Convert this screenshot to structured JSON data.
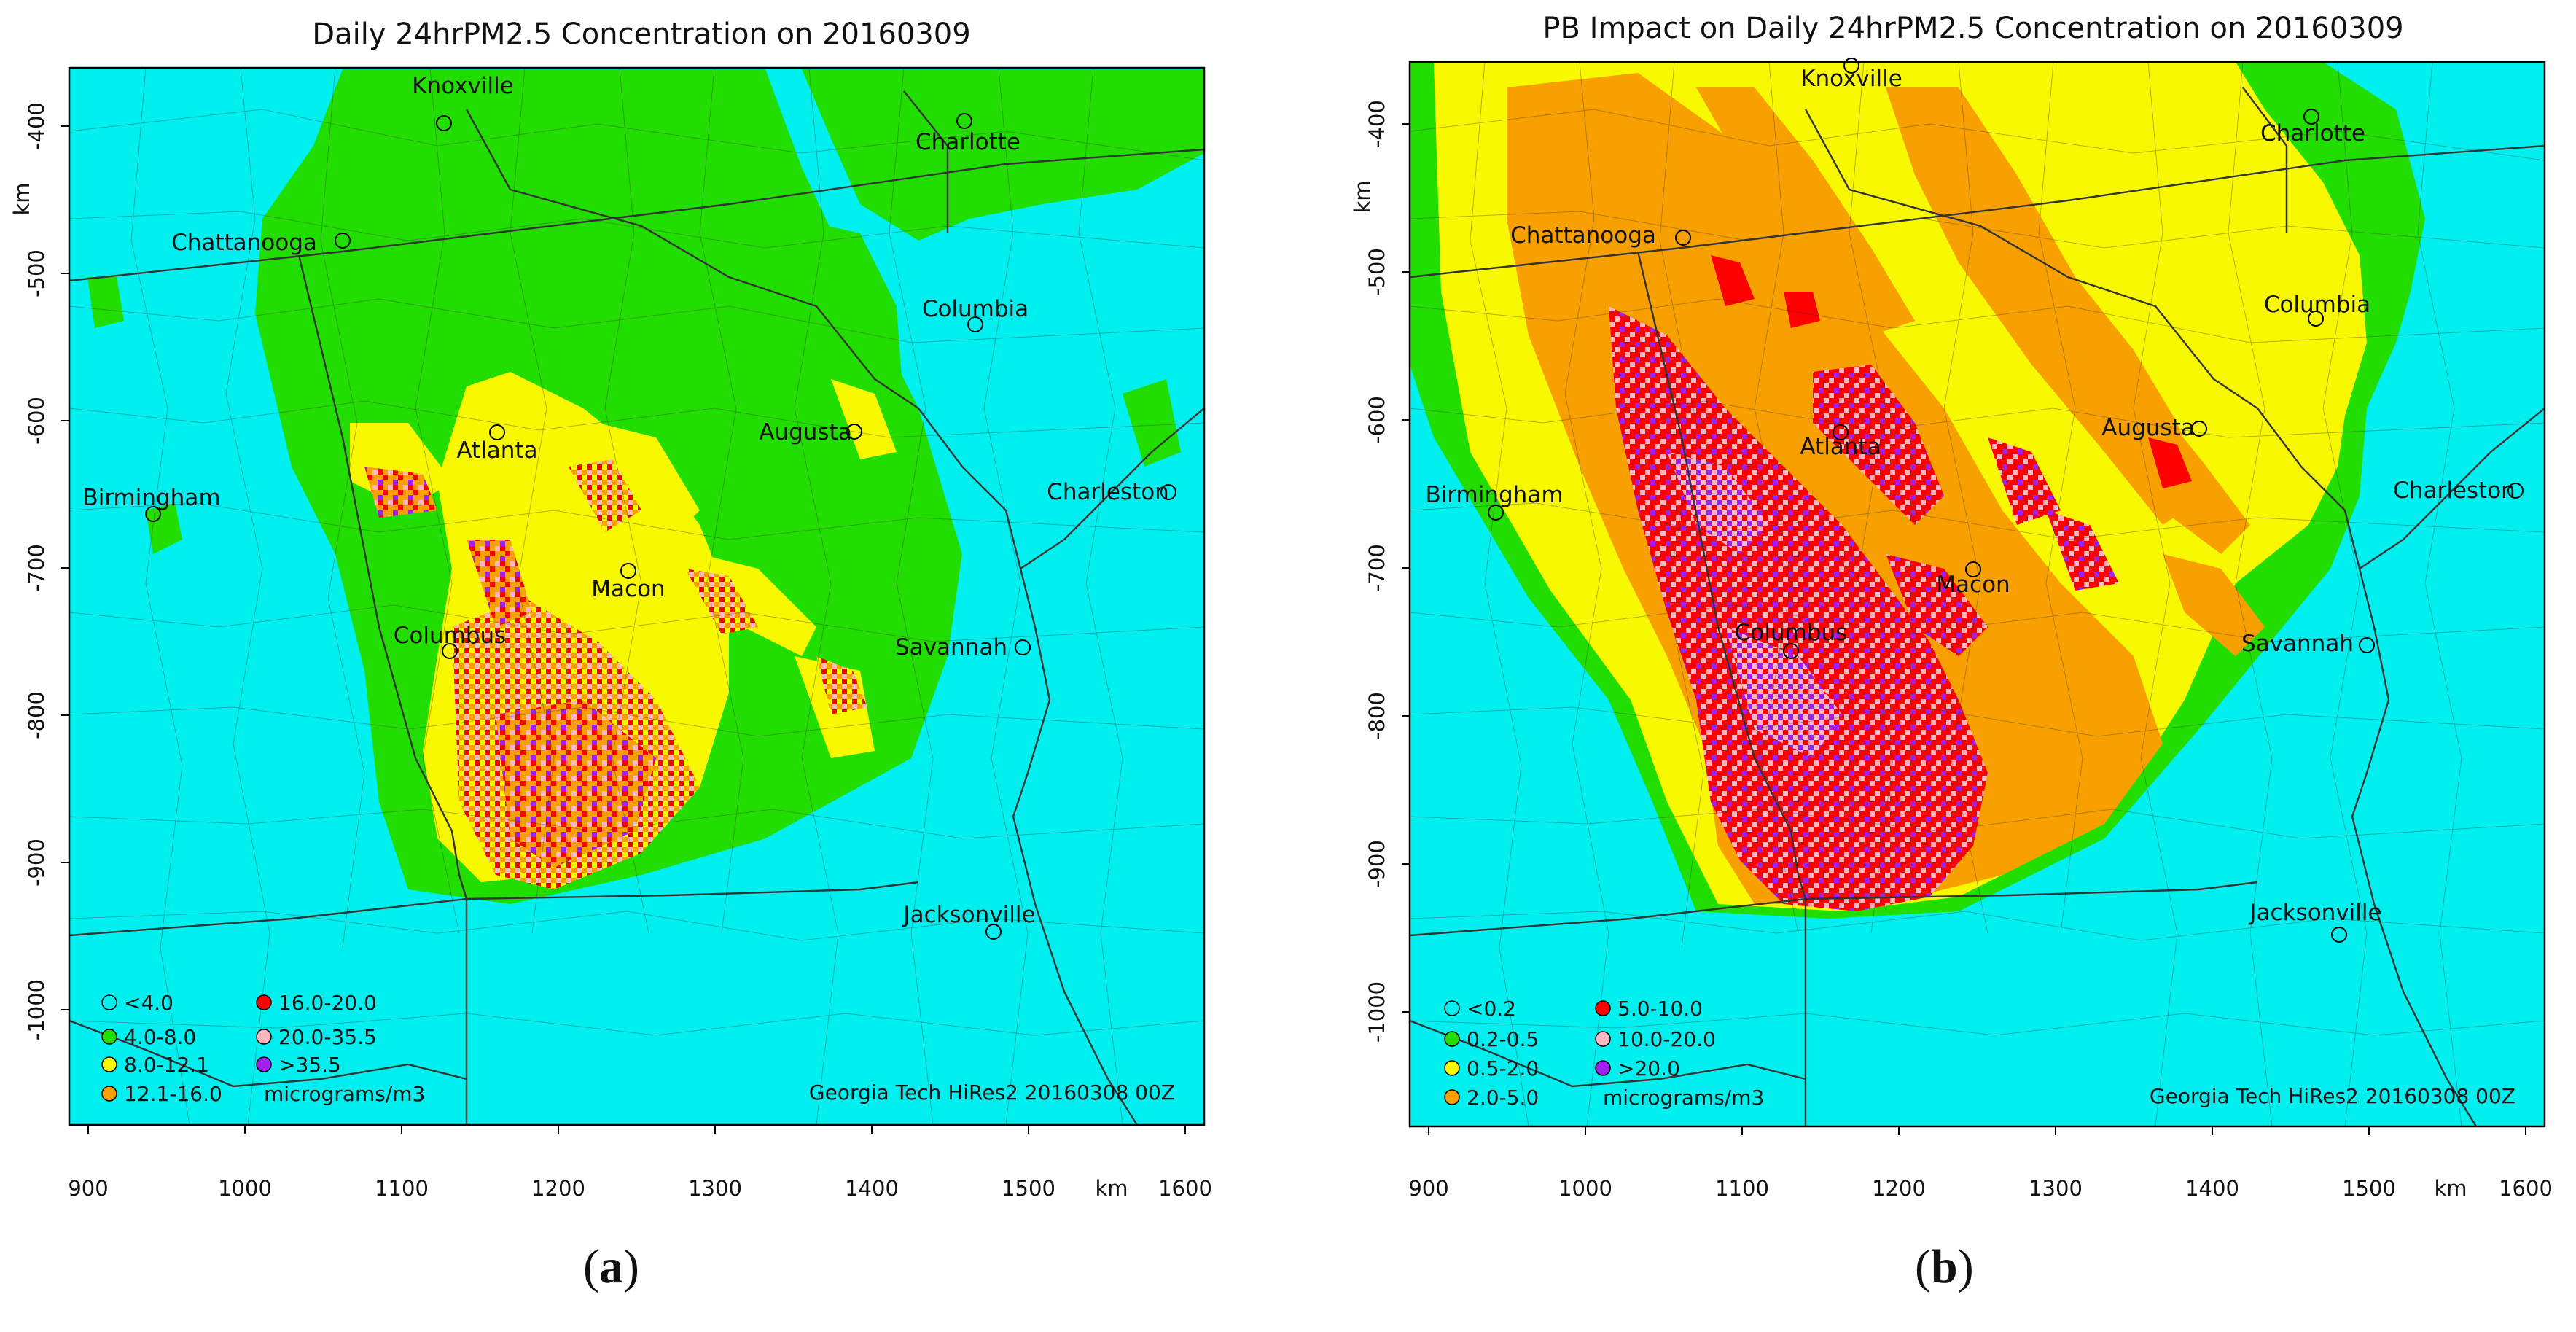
{
  "colors": {
    "background": "#00f0f0",
    "green": "#22dd00",
    "yellow": "#f8f800",
    "orange": "#f8a000",
    "red": "#ff0000",
    "pink": "#ffb6c1",
    "purple": "#a020f0",
    "boundary": "#333333"
  },
  "axes": {
    "x_ticks": [
      "900",
      "1000",
      "1100",
      "1200",
      "1300",
      "1400",
      "1500",
      "1600"
    ],
    "y_ticks": [
      "-400",
      "-500",
      "-600",
      "-700",
      "-800",
      "-900",
      "-1000"
    ],
    "x_unit": "km",
    "y_unit": "km",
    "x_range": [
      885,
      1610
    ],
    "y_range": [
      -1080,
      -365
    ]
  },
  "cities": [
    {
      "name": "Knoxville",
      "x": 1160,
      "y": -378
    },
    {
      "name": "Charlotte",
      "x": 1455,
      "y": -398
    },
    {
      "name": "Chattanooga",
      "x": 1063,
      "y": -478
    },
    {
      "name": "Columbia",
      "x": 1463,
      "y": -535
    },
    {
      "name": "Atlanta",
      "x": 1160,
      "y": -611
    },
    {
      "name": "Augusta",
      "x": 1387,
      "y": -609
    },
    {
      "name": "Birmingham",
      "x": 940,
      "y": -663
    },
    {
      "name": "Charleston",
      "x": 1585,
      "y": -649
    },
    {
      "name": "Macon",
      "x": 1242,
      "y": -703
    },
    {
      "name": "Columbus",
      "x": 1128,
      "y": -756
    },
    {
      "name": "Savannah",
      "x": 1492,
      "y": -754
    },
    {
      "name": "Jacksonville",
      "x": 1472,
      "y": -948
    }
  ],
  "panels": [
    {
      "id": "a",
      "title": "Daily 24hrPM2.5 Concentration on 20160309",
      "caption": "a",
      "legend": [
        {
          "label": "<4.0",
          "color": "#00f0f0"
        },
        {
          "label": "4.0-8.0",
          "color": "#22dd00"
        },
        {
          "label": "8.0-12.1",
          "color": "#f8f800"
        },
        {
          "label": "12.1-16.0",
          "color": "#f8a000"
        },
        {
          "label": "16.0-20.0",
          "color": "#ff0000"
        },
        {
          "label": "20.0-35.5",
          "color": "#ffb6c1"
        },
        {
          "label": ">35.5",
          "color": "#a020f0"
        }
      ],
      "legend_unit": "micrograms/m3",
      "credit": "Georgia Tech HiRes2 20160308 00Z"
    },
    {
      "id": "b",
      "title": "PB Impact on Daily 24hrPM2.5 Concentration on 20160309",
      "caption": "b",
      "legend": [
        {
          "label": "<0.2",
          "color": "#00f0f0"
        },
        {
          "label": "0.2-0.5",
          "color": "#22dd00"
        },
        {
          "label": "0.5-2.0",
          "color": "#f8f800"
        },
        {
          "label": "2.0-5.0",
          "color": "#f8a000"
        },
        {
          "label": "5.0-10.0",
          "color": "#ff0000"
        },
        {
          "label": "10.0-20.0",
          "color": "#ffb6c1"
        },
        {
          "label": ">20.0",
          "color": "#a020f0"
        }
      ],
      "legend_unit": "micrograms/m3",
      "credit": "Georgia Tech HiRes2 20160308 00Z"
    }
  ]
}
